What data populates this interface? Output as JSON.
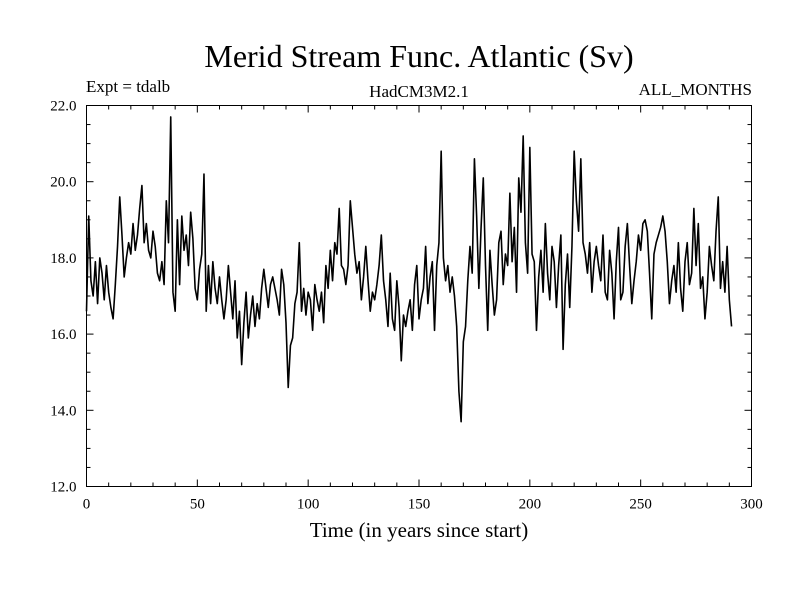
{
  "chart_data": {
    "type": "line",
    "title": "Merid Stream Func. Atlantic (Sv)",
    "left_label": "Expt = tdalb",
    "center_label": "HadCM3M2.1",
    "right_label": "ALL_MONTHS",
    "xlabel": "Time (in years since start)",
    "ylabel": "",
    "xlim": [
      0,
      300
    ],
    "ylim": [
      12.0,
      22.0
    ],
    "x_ticks": [
      0,
      50,
      100,
      150,
      200,
      250,
      300
    ],
    "x_tick_labels": [
      "0",
      "50",
      "100",
      "150",
      "200",
      "250",
      "300"
    ],
    "y_ticks": [
      12.0,
      14.0,
      16.0,
      18.0,
      20.0,
      22.0
    ],
    "y_tick_labels": [
      "12.0",
      "14.0",
      "16.0",
      "18.0",
      "20.0",
      "22.0"
    ],
    "x_minor_step": 10,
    "y_minor_step": 0.5,
    "series": [
      {
        "name": "Merid Stream Func. Atlantic",
        "x_start": 0,
        "x_step": 1,
        "values": [
          16.6,
          19.1,
          17.4,
          17.0,
          17.9,
          16.8,
          18.0,
          17.6,
          16.9,
          17.8,
          17.1,
          16.7,
          16.4,
          17.3,
          18.3,
          19.6,
          18.6,
          17.5,
          18.0,
          18.4,
          18.1,
          18.9,
          18.2,
          18.6,
          19.3,
          19.9,
          18.4,
          18.9,
          18.2,
          18.0,
          18.7,
          18.3,
          17.6,
          17.4,
          17.9,
          17.3,
          19.5,
          18.4,
          21.7,
          17.1,
          16.6,
          19.0,
          17.3,
          19.1,
          18.2,
          18.6,
          17.8,
          19.2,
          18.5,
          17.2,
          16.9,
          17.7,
          18.1,
          20.2,
          16.6,
          17.8,
          16.8,
          17.9,
          17.2,
          16.8,
          17.5,
          16.9,
          16.4,
          16.9,
          17.8,
          17.1,
          16.4,
          17.4,
          15.9,
          16.6,
          15.2,
          16.3,
          17.1,
          15.9,
          16.5,
          17.0,
          16.2,
          16.8,
          16.4,
          17.2,
          17.7,
          17.2,
          16.7,
          17.3,
          17.5,
          17.2,
          16.9,
          16.5,
          17.7,
          17.3,
          16.3,
          14.6,
          15.7,
          15.9,
          16.8,
          17.1,
          18.4,
          16.6,
          17.2,
          16.5,
          17.1,
          16.9,
          16.1,
          17.3,
          16.9,
          16.6,
          17.1,
          16.3,
          17.8,
          17.2,
          18.2,
          17.4,
          18.4,
          18.1,
          19.3,
          17.8,
          17.7,
          17.3,
          17.8,
          19.5,
          18.8,
          18.1,
          17.6,
          17.9,
          16.9,
          17.5,
          18.3,
          17.4,
          16.6,
          17.1,
          16.9,
          17.3,
          17.8,
          18.6,
          17.4,
          16.9,
          16.2,
          17.6,
          16.4,
          16.1,
          17.4,
          16.7,
          15.3,
          16.5,
          16.2,
          16.6,
          16.9,
          16.1,
          17.3,
          17.8,
          16.4,
          16.9,
          17.2,
          18.3,
          16.8,
          17.5,
          17.9,
          16.1,
          17.8,
          18.4,
          20.8,
          18.0,
          17.4,
          17.8,
          17.1,
          17.5,
          17.0,
          16.2,
          14.5,
          13.7,
          15.8,
          16.2,
          17.4,
          18.3,
          17.6,
          20.6,
          19.1,
          17.2,
          18.8,
          20.1,
          17.8,
          16.1,
          18.2,
          17.3,
          16.5,
          16.9,
          18.4,
          18.7,
          17.3,
          18.1,
          17.8,
          19.7,
          17.9,
          18.8,
          17.1,
          20.1,
          19.2,
          21.2,
          18.4,
          17.6,
          20.9,
          18.1,
          17.9,
          16.1,
          17.5,
          18.2,
          17.1,
          18.9,
          17.6,
          16.9,
          18.3,
          17.9,
          16.7,
          17.8,
          18.6,
          15.6,
          17.3,
          18.1,
          16.7,
          18.3,
          20.8,
          19.5,
          18.7,
          20.6,
          18.4,
          18.1,
          17.6,
          18.4,
          17.1,
          17.9,
          18.3,
          17.8,
          17.4,
          18.6,
          17.1,
          16.9,
          18.2,
          17.6,
          16.4,
          17.9,
          18.8,
          16.9,
          17.1,
          18.3,
          18.9,
          17.8,
          16.8,
          17.4,
          17.9,
          18.6,
          18.2,
          18.9,
          19.0,
          18.7,
          17.6,
          16.4,
          18.1,
          18.4,
          18.6,
          18.8,
          19.1,
          18.7,
          17.9,
          16.8,
          17.4,
          17.8,
          17.1,
          18.4,
          17.2,
          16.6,
          17.9,
          18.4,
          17.3,
          17.6,
          19.3,
          17.8,
          18.9,
          17.2,
          17.5,
          16.4,
          17.1,
          18.3,
          17.8,
          17.4,
          18.7,
          19.6,
          17.2,
          17.9,
          17.1,
          18.3,
          16.9,
          16.2
        ]
      }
    ]
  }
}
